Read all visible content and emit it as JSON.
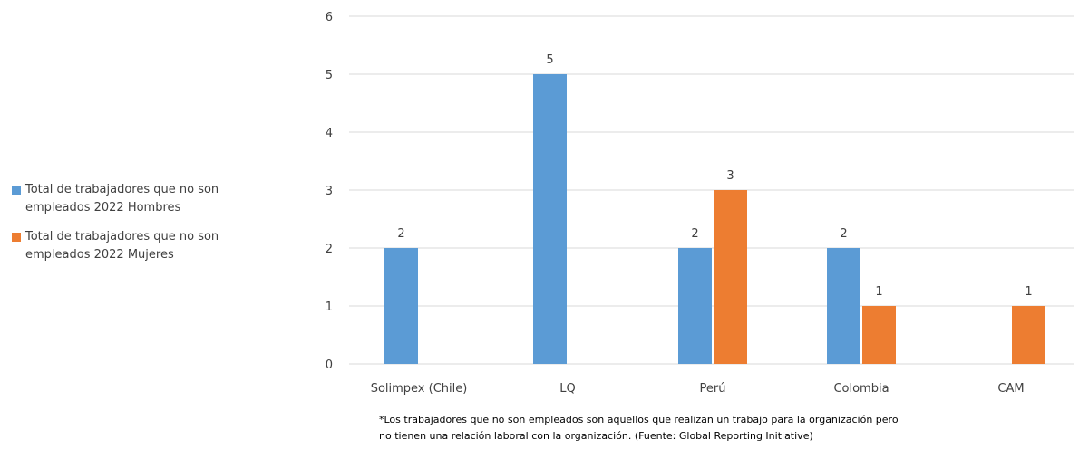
{
  "colors": {
    "hombres": "#5B9BD5",
    "mujeres": "#ED7D31",
    "grid": "#D9D9D9",
    "text": "#404040"
  },
  "chart_data": {
    "type": "bar",
    "title": "",
    "xlabel": "",
    "ylabel": "",
    "categories": [
      "Solimpex (Chile)",
      "LQ",
      "Perú",
      "Colombia",
      "CAM"
    ],
    "series": [
      {
        "name": "Total de trabajadores que no son empleados  2022 Hombres",
        "color": "#5B9BD5",
        "values": [
          2,
          5,
          2,
          2,
          null
        ]
      },
      {
        "name": "Total de trabajadores que no son empleados  2022 Mujeres",
        "color": "#ED7D31",
        "values": [
          null,
          null,
          3,
          1,
          1
        ]
      }
    ],
    "ylim": [
      0,
      6
    ],
    "yticks": [
      "0",
      "1",
      "2",
      "3",
      "4",
      "5",
      "6"
    ],
    "grid": true,
    "legend_position": "left",
    "data_labels": true
  },
  "legend": {
    "items": [
      {
        "label_line1": "Total de trabajadores que no son",
        "label_line2": "empleados  2022 Hombres",
        "color": "#5B9BD5"
      },
      {
        "label_line1": "Total de trabajadores que no son",
        "label_line2": "empleados  2022 Mujeres",
        "color": "#ED7D31"
      }
    ]
  },
  "footnote": {
    "line1": "*Los trabajadores que no son empleados son aquellos que realizan un trabajo  para la organización pero",
    "line2": "no tienen una relación laboral con la organización. (Fuente: Global Reporting Initiative)"
  }
}
